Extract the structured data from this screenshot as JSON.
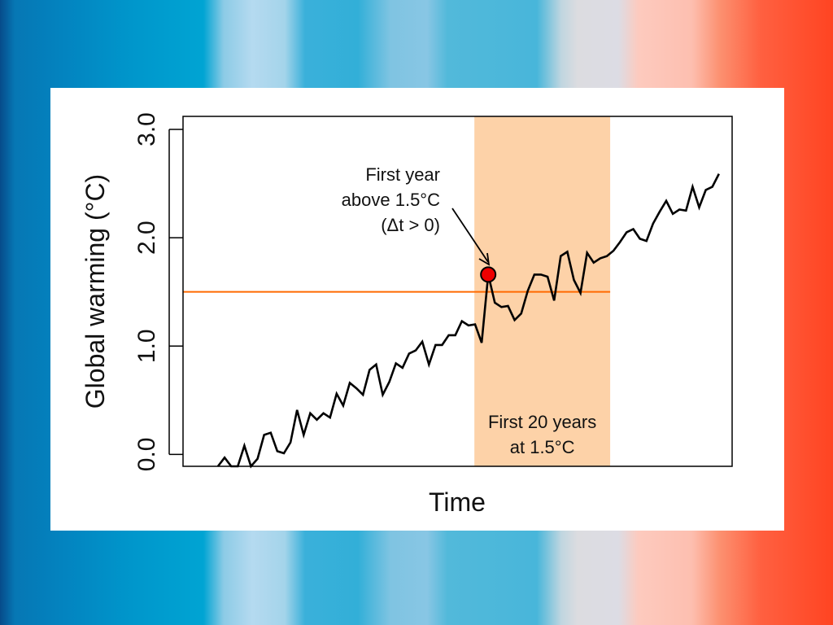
{
  "background": {
    "type": "warming-stripes",
    "colors": [
      "#064b8a",
      "#0384c0",
      "#00a4d3",
      "#b5daf0",
      "#32afd8",
      "#88c6e4",
      "#48b6da",
      "#dcdce0",
      "#fdcabe",
      "#fc9070",
      "#ff4422"
    ]
  },
  "chart_data": {
    "type": "line",
    "title": "",
    "xlabel": "Time",
    "ylabel": "Global warming (°C)",
    "ylim": [
      -0.11,
      3.12
    ],
    "xlim": [
      -5.3,
      78
    ],
    "yticks": [
      0.0,
      1.0,
      2.0,
      3.0
    ],
    "ytick_labels": [
      "0.0",
      "1.0",
      "2.0",
      "3.0"
    ],
    "grid": false,
    "series": [
      {
        "color": "#000000",
        "values": [
          -0.15,
          -0.03,
          -0.15,
          -0.15,
          0.08,
          -0.15,
          -0.04,
          0.18,
          0.2,
          0.03,
          0.01,
          0.11,
          0.41,
          0.18,
          0.38,
          0.32,
          0.38,
          0.34,
          0.56,
          0.45,
          0.66,
          0.61,
          0.55,
          0.78,
          0.83,
          0.55,
          0.67,
          0.84,
          0.8,
          0.93,
          0.96,
          1.04,
          0.83,
          1.01,
          1.01,
          1.1,
          1.1,
          1.23,
          1.19,
          1.2,
          1.03,
          1.66,
          1.4,
          1.36,
          1.37,
          1.24,
          1.3,
          1.51,
          1.66,
          1.66,
          1.64,
          1.42,
          1.83,
          1.87,
          1.61,
          1.49,
          1.86,
          1.77,
          1.81,
          1.83,
          1.88,
          1.96,
          2.05,
          2.08,
          1.99,
          1.97,
          2.13,
          2.24,
          2.34,
          2.22,
          2.26,
          2.25,
          2.47,
          2.28,
          2.44,
          2.47,
          2.59
        ]
      }
    ],
    "threshold": {
      "value": 1.5,
      "color": "#ff6a00",
      "x_end": 59.5
    },
    "shaded_band": {
      "x_start": 38.9,
      "x_end": 59.5,
      "color": "#fdd2a8",
      "label_line1": "First 20 years",
      "label_line2": "at 1.5°C"
    },
    "highlight_point": {
      "index": 41,
      "value": 1.66,
      "color": "#ee0000",
      "annotation_line1": "First year",
      "annotation_line2": "above 1.5°C",
      "annotation_line3": "(Δt > 0)"
    }
  }
}
